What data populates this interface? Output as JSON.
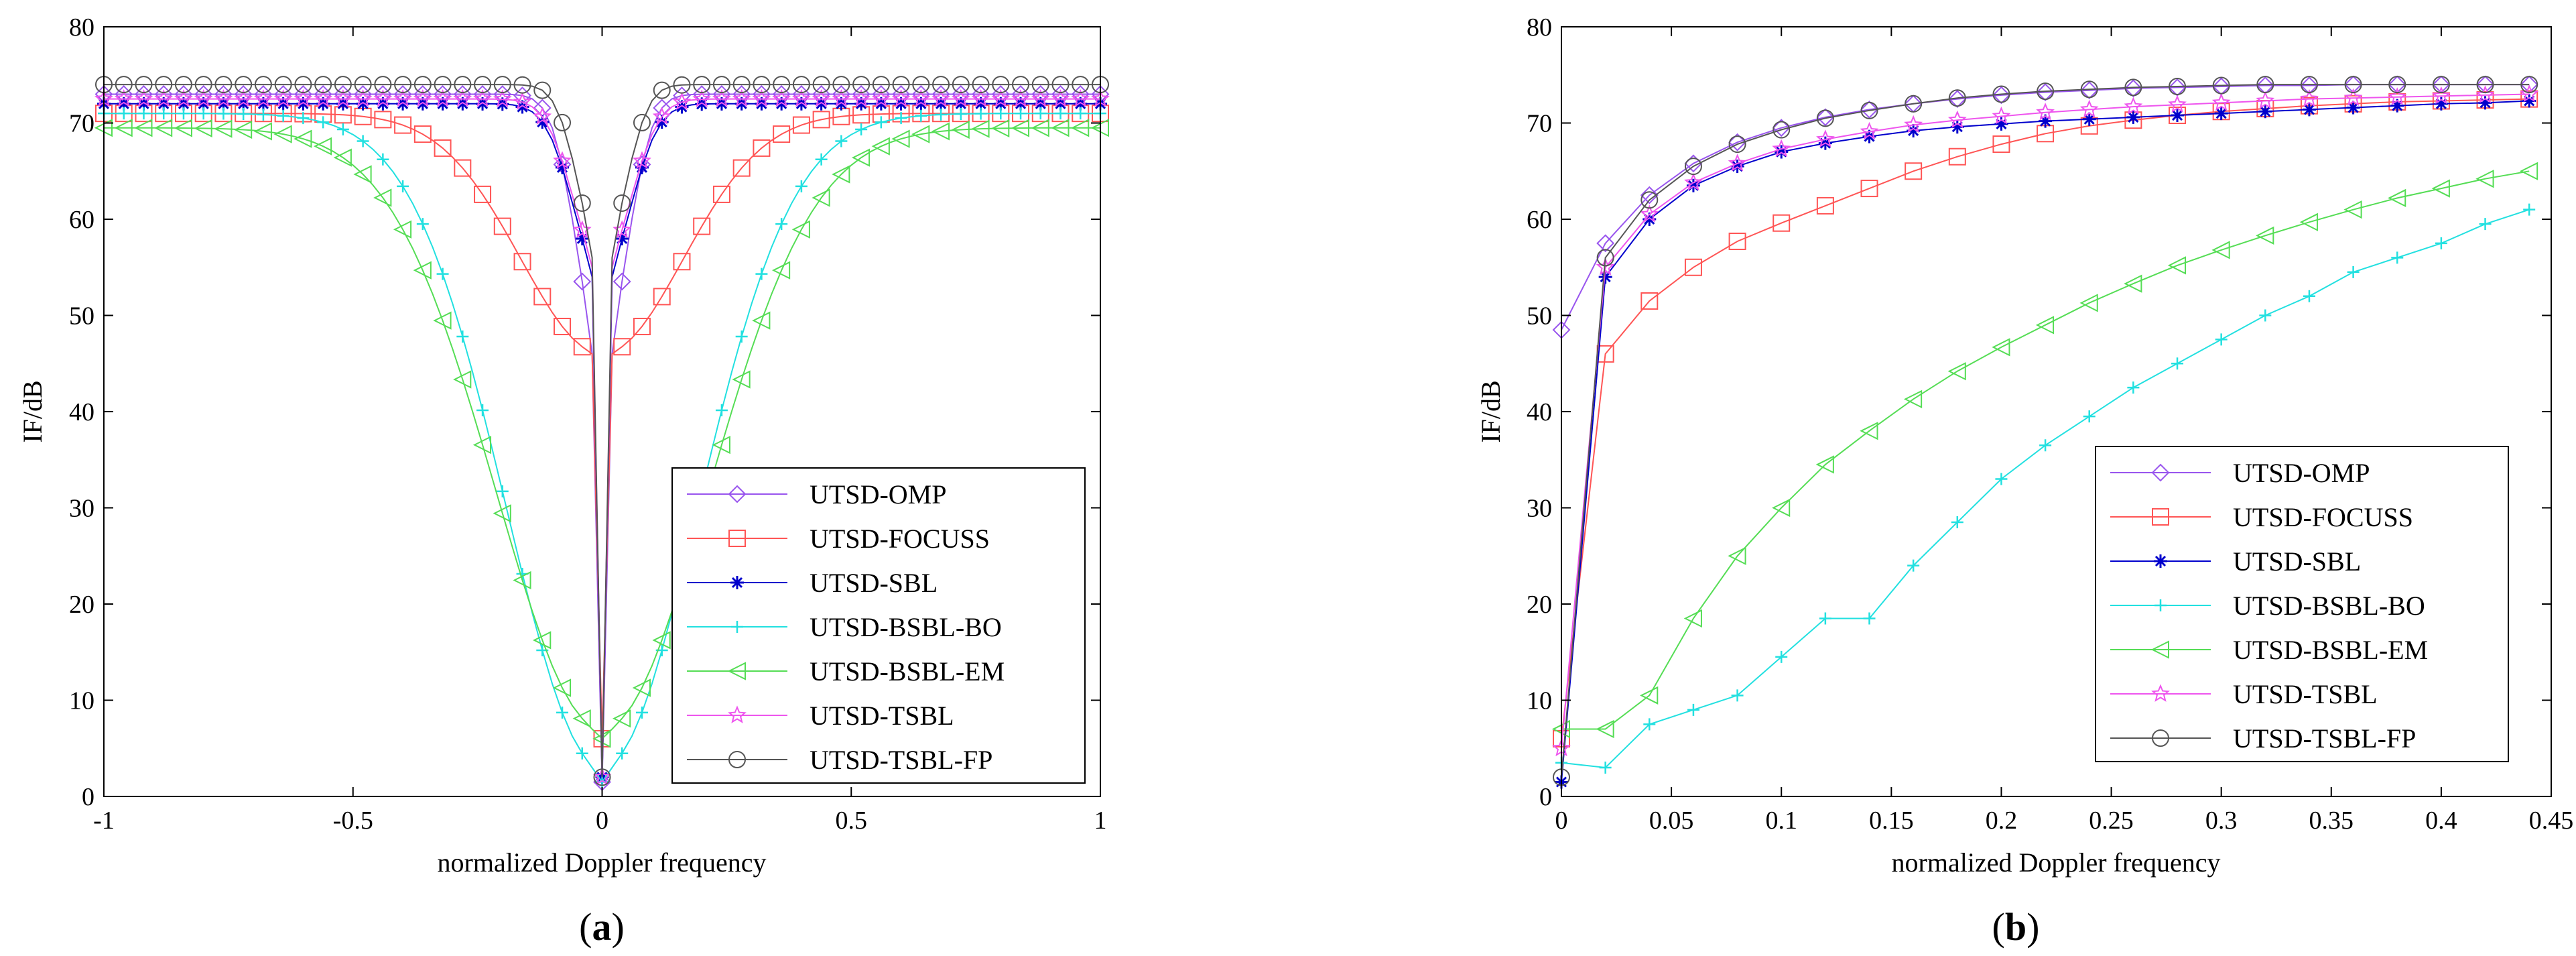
{
  "chart_data": [
    {
      "id": "a",
      "type": "line",
      "caption": "(a)",
      "caption_prefix": "(",
      "caption_letter": "a",
      "caption_suffix": ")",
      "xlabel": "normalized Doppler frequency",
      "ylabel": "IF/dB",
      "xlim": [
        -1,
        1
      ],
      "ylim": [
        0,
        80
      ],
      "xticks": [
        -1,
        -0.5,
        0,
        0.5,
        1
      ],
      "xtick_labels": [
        "-1",
        "-0.5",
        "0",
        "0.5",
        "1"
      ],
      "yticks": [
        0,
        10,
        20,
        30,
        40,
        50,
        60,
        70,
        80
      ],
      "ytick_labels": [
        "0",
        "10",
        "20",
        "30",
        "40",
        "50",
        "60",
        "70",
        "80"
      ],
      "grid": false,
      "legend_position": "bottom-right",
      "series": [
        {
          "name": "UTSD-OMP",
          "color": "#9955ee",
          "marker": "diamond",
          "shape": "dip",
          "plateau": 73,
          "width": 0.07,
          "near": 46,
          "min": 1.5
        },
        {
          "name": "UTSD-FOCUSS",
          "color": "#ff5555",
          "marker": "square",
          "shape": "dip",
          "plateau": 71,
          "width": 0.23,
          "near": 46,
          "min": 6
        },
        {
          "name": "UTSD-SBL",
          "color": "#0000cc",
          "marker": "asterisk",
          "shape": "dip",
          "plateau": 72,
          "width": 0.08,
          "near": 54,
          "min": 2
        },
        {
          "name": "UTSD-BSBL-BO",
          "color": "#22e0e0",
          "marker": "plus",
          "shape": "dip",
          "plateau": 71,
          "width": 0.27,
          "near": 3,
          "min": 1.5
        },
        {
          "name": "UTSD-BSBL-EM",
          "color": "#55dd55",
          "marker": "triangle-left",
          "shape": "dip",
          "plateau": 69.5,
          "width": 0.3,
          "near": 7,
          "min": 6
        },
        {
          "name": "UTSD-TSBL",
          "color": "#ee55ee",
          "marker": "star",
          "shape": "dip",
          "plateau": 72.5,
          "width": 0.08,
          "near": 55,
          "min": 2
        },
        {
          "name": "UTSD-TSBL-FP",
          "color": "#555555",
          "marker": "circle",
          "shape": "dip",
          "plateau": 74,
          "width": 0.065,
          "near": 56,
          "min": 2
        }
      ]
    },
    {
      "id": "b",
      "type": "line",
      "caption": "(b)",
      "caption_prefix": "(",
      "caption_letter": "b",
      "caption_suffix": ")",
      "xlabel": "normalized Doppler frequency",
      "ylabel": "IF/dB",
      "xlim": [
        0,
        0.45
      ],
      "ylim": [
        0,
        80
      ],
      "xticks": [
        0,
        0.05,
        0.1,
        0.15,
        0.2,
        0.25,
        0.3,
        0.35,
        0.4,
        0.45
      ],
      "xtick_labels": [
        "0",
        "0.05",
        "0.1",
        "0.15",
        "0.2",
        "0.25",
        "0.3",
        "0.35",
        "0.4",
        "0.45"
      ],
      "yticks": [
        0,
        10,
        20,
        30,
        40,
        50,
        60,
        70,
        80
      ],
      "ytick_labels": [
        "0",
        "10",
        "20",
        "30",
        "40",
        "50",
        "60",
        "70",
        "80"
      ],
      "grid": false,
      "legend_position": "bottom-right",
      "x": [
        0,
        0.02,
        0.04,
        0.06,
        0.08,
        0.1,
        0.12,
        0.14,
        0.16,
        0.18,
        0.2,
        0.22,
        0.24,
        0.26,
        0.28,
        0.3,
        0.32,
        0.34,
        0.36,
        0.38,
        0.4,
        0.42,
        0.44
      ],
      "series": [
        {
          "name": "UTSD-OMP",
          "color": "#9955ee",
          "marker": "diamond",
          "values": [
            48.5,
            57.5,
            62.5,
            65.8,
            68,
            69.5,
            70.6,
            71.4,
            72,
            72.5,
            72.9,
            73.2,
            73.4,
            73.6,
            73.7,
            73.8,
            73.9,
            73.9,
            74,
            74,
            74,
            74,
            74
          ]
        },
        {
          "name": "UTSD-FOCUSS",
          "color": "#ff5555",
          "marker": "square",
          "values": [
            6,
            46,
            51.5,
            55,
            57.7,
            59.6,
            61.4,
            63.2,
            65,
            66.5,
            67.8,
            68.9,
            69.7,
            70.3,
            70.8,
            71.2,
            71.5,
            71.8,
            72,
            72.2,
            72.3,
            72.4,
            72.5
          ]
        },
        {
          "name": "UTSD-SBL",
          "color": "#0000cc",
          "marker": "asterisk",
          "values": [
            1.5,
            54,
            60,
            63.5,
            65.5,
            67,
            67.9,
            68.6,
            69.2,
            69.6,
            69.9,
            70.2,
            70.4,
            70.6,
            70.8,
            71,
            71.2,
            71.4,
            71.6,
            71.8,
            72,
            72.1,
            72.3
          ]
        },
        {
          "name": "UTSD-BSBL-BO",
          "color": "#22e0e0",
          "marker": "plus",
          "values": [
            3.5,
            3,
            7.5,
            9,
            10.5,
            14.5,
            18.5,
            18.5,
            24,
            28.5,
            33,
            36.5,
            39.5,
            42.5,
            45,
            47.5,
            50,
            52,
            54.5,
            56,
            57.5,
            59.5,
            61
          ]
        },
        {
          "name": "UTSD-BSBL-EM",
          "color": "#55dd55",
          "marker": "triangle-left",
          "values": [
            7,
            7,
            10.5,
            18.5,
            25,
            30,
            34.5,
            38,
            41.3,
            44.2,
            46.7,
            49,
            51.3,
            53.3,
            55.2,
            56.8,
            58.3,
            59.7,
            61,
            62.2,
            63.2,
            64.2,
            65
          ]
        },
        {
          "name": "UTSD-TSBL",
          "color": "#ee55ee",
          "marker": "star",
          "values": [
            5,
            55,
            60.5,
            63.8,
            65.8,
            67.3,
            68.3,
            69.1,
            69.8,
            70.3,
            70.7,
            71.1,
            71.4,
            71.7,
            71.9,
            72.1,
            72.3,
            72.5,
            72.6,
            72.7,
            72.8,
            72.9,
            73
          ]
        },
        {
          "name": "UTSD-TSBL-FP",
          "color": "#555555",
          "marker": "circle",
          "values": [
            2,
            56,
            62,
            65.5,
            67.8,
            69.3,
            70.5,
            71.3,
            72,
            72.6,
            73,
            73.3,
            73.5,
            73.7,
            73.8,
            73.9,
            74,
            74,
            74,
            74,
            74,
            74,
            74
          ]
        }
      ]
    }
  ]
}
